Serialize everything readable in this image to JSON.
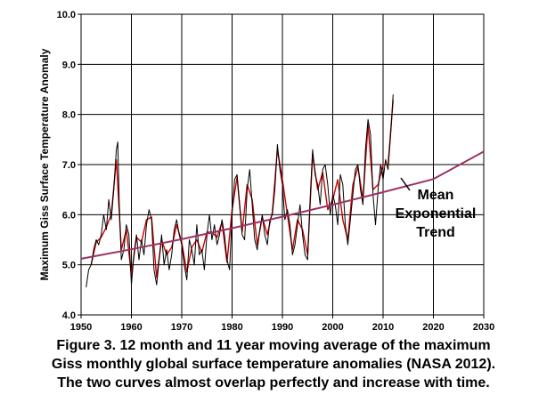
{
  "chart_data": {
    "type": "line",
    "title": "",
    "xlabel": "",
    "ylabel": "Maximum Giss Surface Temperature Anomaly",
    "xlim": [
      1950,
      2030
    ],
    "ylim": [
      4.0,
      10.0
    ],
    "x_ticks": [
      "1950",
      "1960",
      "1970",
      "1980",
      "1990",
      "2000",
      "2010",
      "2020",
      "2030"
    ],
    "y_ticks": [
      "4.0",
      "5.0",
      "6.0",
      "7.0",
      "8.0",
      "9.0",
      "10.0"
    ],
    "grid": true,
    "legend": "none",
    "series": [
      {
        "color": "#000000",
        "style": "12 month moving average",
        "x": [
          1951.0,
          1951.5,
          1952.0,
          1952.5,
          1953.0,
          1953.5,
          1954.0,
          1954.5,
          1955.0,
          1955.5,
          1956.0,
          1956.5,
          1957.0,
          1957.3,
          1957.6,
          1958.0,
          1958.5,
          1959.0,
          1959.5,
          1960.0,
          1960.5,
          1961.0,
          1961.5,
          1962.0,
          1962.5,
          1963.0,
          1963.5,
          1964.0,
          1964.5,
          1965.0,
          1965.5,
          1966.0,
          1966.5,
          1967.0,
          1967.5,
          1968.0,
          1968.5,
          1969.0,
          1969.5,
          1970.0,
          1970.5,
          1971.0,
          1971.5,
          1972.0,
          1972.5,
          1973.0,
          1973.5,
          1974.0,
          1974.5,
          1975.0,
          1975.5,
          1976.0,
          1976.5,
          1977.0,
          1977.5,
          1978.0,
          1978.5,
          1979.0,
          1979.5,
          1980.0,
          1980.5,
          1981.0,
          1981.5,
          1982.0,
          1982.5,
          1983.0,
          1983.5,
          1984.0,
          1984.5,
          1985.0,
          1985.5,
          1986.0,
          1986.5,
          1987.0,
          1987.5,
          1988.0,
          1988.5,
          1989.0,
          1989.5,
          1990.0,
          1990.5,
          1991.0,
          1991.5,
          1992.0,
          1992.5,
          1993.0,
          1993.5,
          1994.0,
          1994.5,
          1995.0,
          1995.5,
          1996.0,
          1996.5,
          1997.0,
          1997.5,
          1998.0,
          1998.5,
          1999.0,
          1999.5,
          2000.0,
          2000.5,
          2001.0,
          2001.5,
          2002.0,
          2002.5,
          2003.0,
          2003.5,
          2004.0,
          2004.5,
          2005.0,
          2005.5,
          2006.0,
          2006.5,
          2007.0,
          2007.5,
          2008.0,
          2008.5,
          2009.0,
          2009.5,
          2010.0,
          2010.5,
          2011.0,
          2011.5,
          2012.0
        ],
        "y": [
          4.55,
          4.9,
          5.0,
          5.3,
          5.5,
          5.4,
          5.6,
          6.0,
          5.7,
          6.3,
          5.9,
          6.5,
          7.3,
          7.45,
          6.2,
          5.1,
          5.3,
          5.8,
          5.6,
          4.6,
          5.2,
          5.6,
          5.1,
          5.5,
          5.2,
          5.8,
          6.1,
          5.9,
          4.9,
          4.6,
          5.1,
          5.6,
          5.0,
          5.3,
          4.9,
          5.2,
          5.7,
          5.9,
          5.6,
          5.4,
          5.0,
          4.7,
          5.5,
          5.3,
          5.0,
          5.8,
          5.2,
          5.3,
          4.9,
          5.6,
          6.0,
          5.5,
          5.8,
          5.4,
          5.6,
          5.9,
          5.6,
          5.1,
          4.9,
          6.0,
          6.7,
          6.8,
          6.2,
          5.6,
          5.5,
          6.5,
          6.9,
          6.2,
          5.5,
          5.3,
          5.7,
          6.0,
          5.6,
          5.4,
          5.9,
          6.0,
          6.5,
          7.4,
          6.9,
          6.6,
          5.9,
          6.1,
          5.8,
          5.2,
          5.4,
          5.8,
          6.2,
          5.6,
          5.2,
          5.1,
          6.3,
          7.3,
          6.8,
          6.6,
          6.2,
          6.9,
          7.0,
          6.6,
          6.0,
          6.4,
          6.2,
          5.8,
          6.8,
          6.6,
          5.8,
          5.4,
          5.9,
          6.4,
          6.9,
          7.0,
          6.5,
          6.2,
          7.3,
          7.9,
          7.6,
          6.4,
          5.8,
          6.5,
          7.0,
          6.7,
          7.1,
          6.9,
          7.6,
          8.4
        ]
      },
      {
        "color": "#cc0000",
        "style": "11 year moving average",
        "x": [
          1952.0,
          1953.0,
          1954.0,
          1955.0,
          1956.0,
          1957.0,
          1958.0,
          1959.0,
          1960.0,
          1961.0,
          1962.0,
          1963.0,
          1964.0,
          1965.0,
          1966.0,
          1967.0,
          1968.0,
          1969.0,
          1970.0,
          1971.0,
          1972.0,
          1973.0,
          1974.0,
          1975.0,
          1976.0,
          1977.0,
          1978.0,
          1979.0,
          1980.0,
          1981.0,
          1982.0,
          1983.0,
          1984.0,
          1985.0,
          1986.0,
          1987.0,
          1988.0,
          1989.0,
          1990.0,
          1991.0,
          1992.0,
          1993.0,
          1994.0,
          1995.0,
          1996.0,
          1997.0,
          1998.0,
          1999.0,
          2000.0,
          2001.0,
          2002.0,
          2003.0,
          2004.0,
          2005.0,
          2006.0,
          2007.0,
          2008.0,
          2009.0,
          2010.0,
          2011.0,
          2012.0
        ],
        "y": [
          5.0,
          5.45,
          5.55,
          5.75,
          6.0,
          7.1,
          5.3,
          5.7,
          4.8,
          5.55,
          5.45,
          5.9,
          5.95,
          4.75,
          5.5,
          5.2,
          5.35,
          5.8,
          5.45,
          4.85,
          5.35,
          5.5,
          5.25,
          5.65,
          5.65,
          5.55,
          5.85,
          5.05,
          6.1,
          6.75,
          5.65,
          6.6,
          6.3,
          5.4,
          5.95,
          5.6,
          6.05,
          7.3,
          6.7,
          6.0,
          5.3,
          5.9,
          5.7,
          5.2,
          7.2,
          6.5,
          6.85,
          6.1,
          6.3,
          6.7,
          5.9,
          5.5,
          6.6,
          6.95,
          6.3,
          7.8,
          6.5,
          6.6,
          7.0,
          7.0,
          8.3
        ]
      }
    ],
    "trend": {
      "name": "Mean Exponential Trend",
      "color": "#993366",
      "x": [
        1950.0,
        1960.0,
        1970.0,
        1980.0,
        1990.0,
        2000.0,
        2010.0,
        2020.0,
        2030.0
      ],
      "y": [
        5.12,
        5.31,
        5.51,
        5.73,
        5.96,
        6.2,
        6.45,
        6.71,
        7.26
      ]
    },
    "annotation": {
      "lines": [
        "Mean",
        "Exponential",
        "Trend"
      ]
    }
  },
  "caption": [
    "Figure 3.  12 month and 11 year moving average of the maximum",
    "Giss monthly global surface temperature anomalies (NASA 2012).",
    "The two curves almost overlap perfectly and increase with time."
  ]
}
